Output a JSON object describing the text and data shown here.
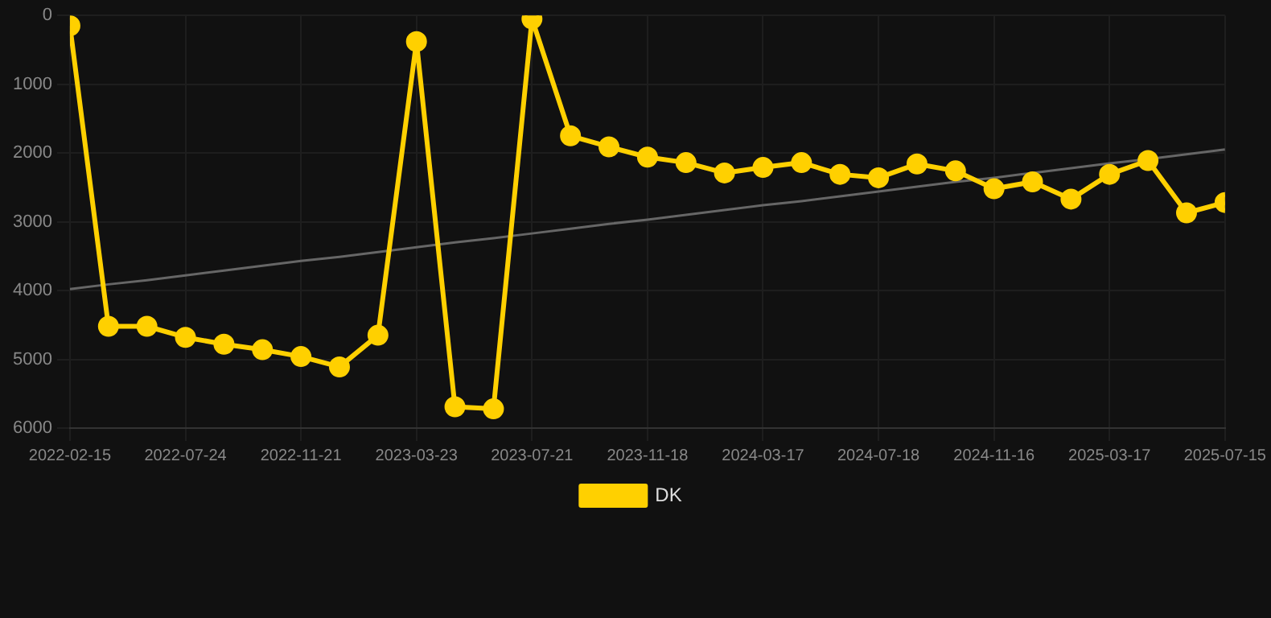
{
  "chart_data": {
    "type": "line",
    "categories": [
      "2022-02-15",
      null,
      null,
      "2022-07-24",
      null,
      null,
      "2022-11-21",
      null,
      null,
      "2023-03-23",
      null,
      null,
      "2023-07-21",
      null,
      null,
      "2023-11-18",
      null,
      null,
      "2024-03-17",
      null,
      null,
      "2024-07-18",
      null,
      null,
      "2024-11-16",
      null,
      null,
      "2025-03-17",
      null,
      null,
      "2025-07-15"
    ],
    "series": [
      {
        "name": "DK",
        "color": "#ffd000",
        "values": [
          150,
          4520,
          4520,
          4680,
          4780,
          4860,
          4960,
          5110,
          4650,
          380,
          5690,
          5720,
          50,
          1750,
          1910,
          2060,
          2140,
          2290,
          2210,
          2140,
          2310,
          2360,
          2160,
          2260,
          2520,
          2420,
          2670,
          2310,
          2110,
          2870,
          2720
        ]
      },
      {
        "type": "line",
        "color": "#666666",
        "values": [
          3980,
          3910,
          3850,
          3780,
          3710,
          3640,
          3570,
          3510,
          3440,
          3370,
          3300,
          3240,
          3170,
          3100,
          3030,
          2970,
          2900,
          2830,
          2760,
          2700,
          2630,
          2560,
          2490,
          2420,
          2360,
          2290,
          2220,
          2150,
          2090,
          2020,
          1950
        ],
        "marker": "none"
      }
    ],
    "ylim": [
      6000,
      0
    ],
    "yticks": [
      0,
      1000,
      2000,
      3000,
      4000,
      5000,
      6000
    ],
    "grid": true,
    "legend": "bottom",
    "marker": "circle",
    "line_style": "solid"
  }
}
